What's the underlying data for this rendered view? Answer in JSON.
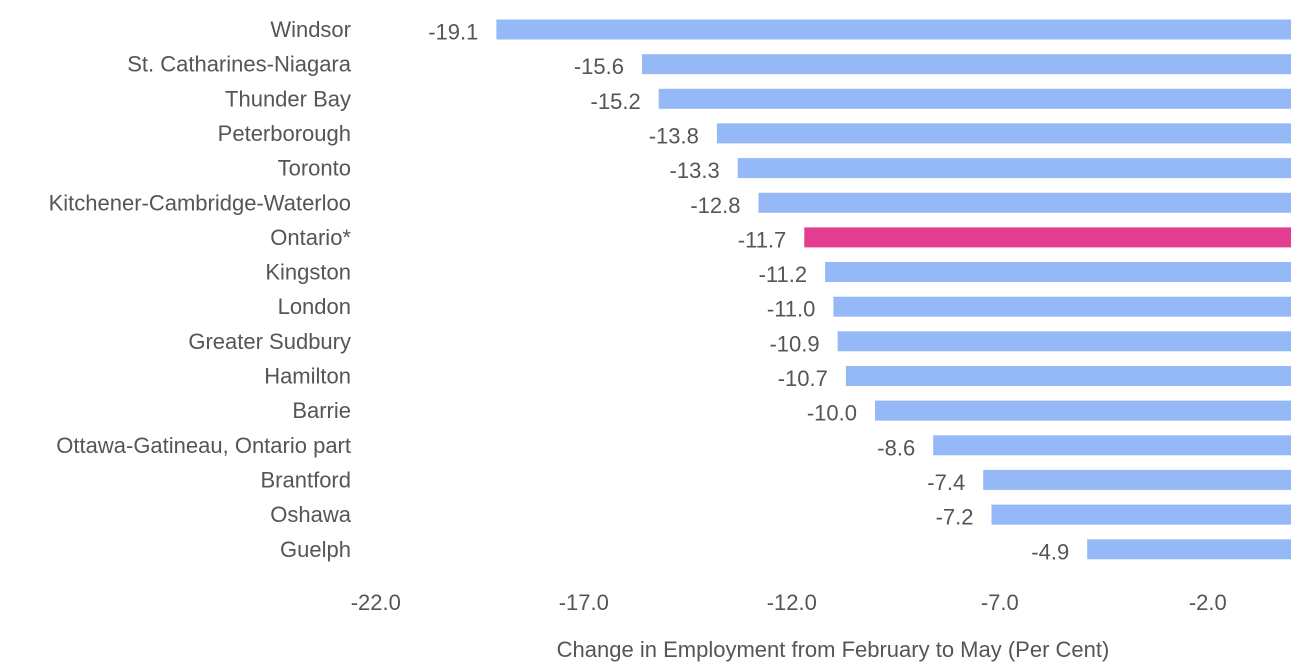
{
  "chart_data": {
    "type": "bar",
    "orientation": "horizontal",
    "title": "",
    "xlabel": "Change in Employment from February to May (Per Cent)",
    "ylabel": "",
    "xlim": [
      -22.0,
      0.0
    ],
    "xticks": [
      -22.0,
      -17.0,
      -12.0,
      -7.0,
      -2.0
    ],
    "xtick_labels": [
      "-22.0",
      "-17.0",
      "-12.0",
      "-7.0",
      "-2.0"
    ],
    "grid": false,
    "legend": "none",
    "colors": {
      "default": "#95b8f6",
      "highlight": "#e33d8f"
    },
    "categories": [
      "Windsor",
      "St. Catharines-Niagara",
      "Thunder Bay",
      "Peterborough",
      "Toronto",
      "Kitchener-Cambridge-Waterloo",
      "Ontario*",
      "Kingston",
      "London",
      "Greater Sudbury",
      "Hamilton",
      "Barrie",
      "Ottawa-Gatineau, Ontario part",
      "Brantford",
      "Oshawa",
      "Guelph"
    ],
    "values": [
      -19.1,
      -15.6,
      -15.2,
      -13.8,
      -13.3,
      -12.8,
      -11.7,
      -11.2,
      -11.0,
      -10.9,
      -10.7,
      -10.0,
      -8.6,
      -7.4,
      -7.2,
      -4.9
    ],
    "value_labels": [
      "-19.1",
      "-15.6",
      "-15.2",
      "-13.8",
      "-13.3",
      "-12.8",
      "-11.7",
      "-11.2",
      "-11.0",
      "-10.9",
      "-10.7",
      "-10.0",
      "-8.6",
      "-7.4",
      "-7.2",
      "-4.9"
    ],
    "highlight_category": "Ontario*"
  }
}
